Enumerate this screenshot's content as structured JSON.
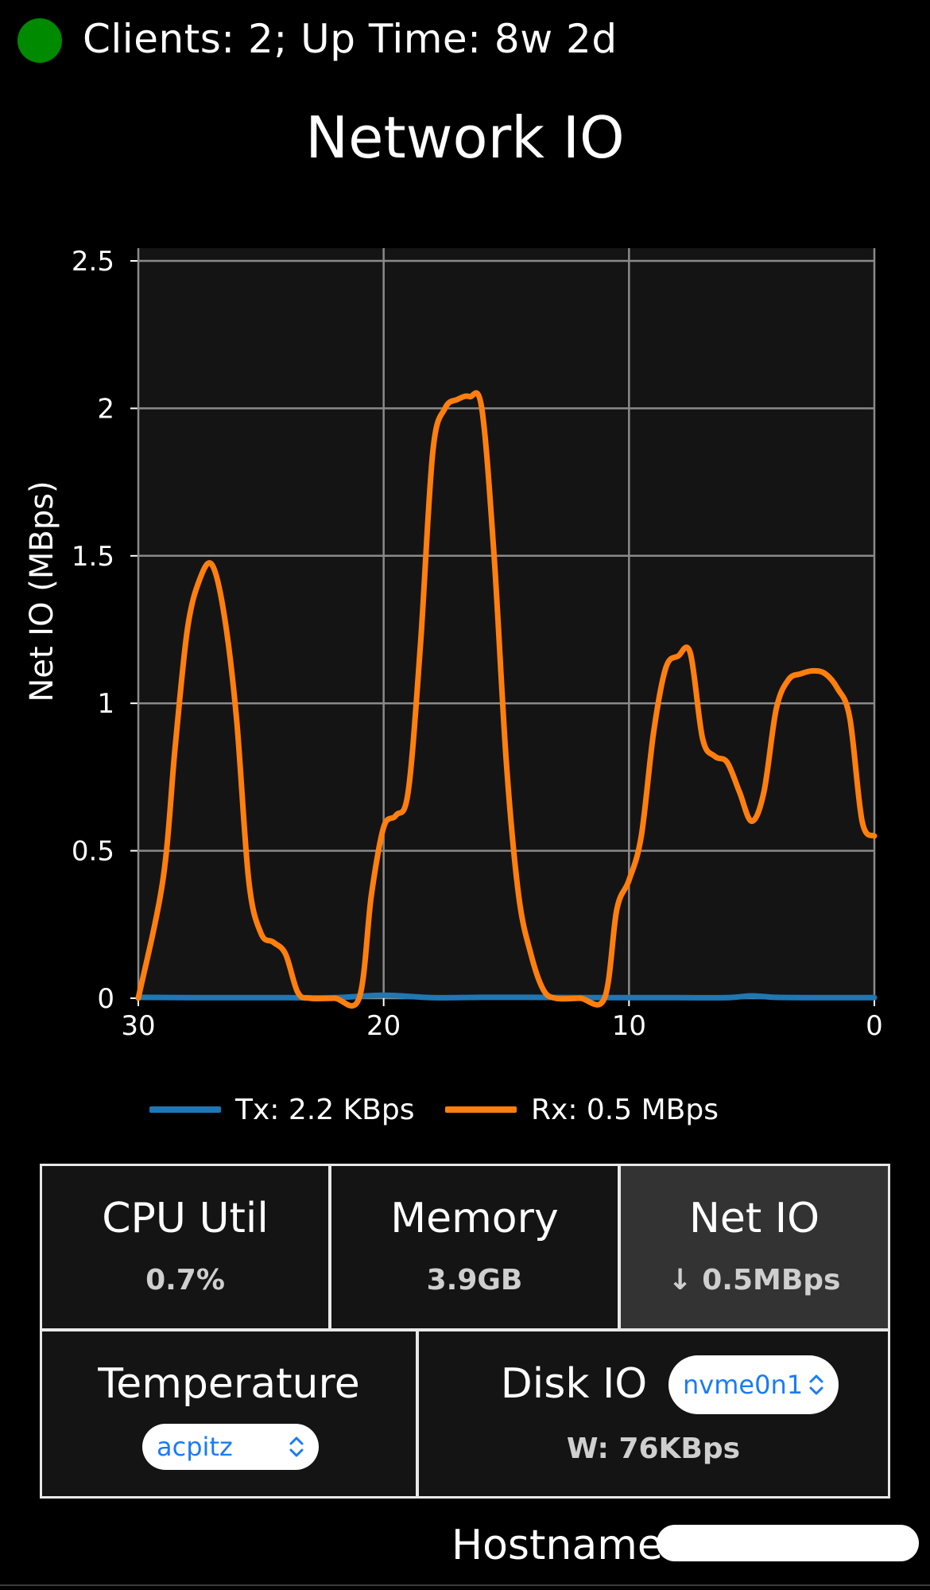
{
  "status": {
    "text": "Clients: 2; Up Time: 8w 2d",
    "indicator_color": "#008a00"
  },
  "page_title": "Network IO",
  "chart_data": {
    "type": "line",
    "title": "",
    "xlabel": "",
    "ylabel": "Net IO (MBps)",
    "xlim": [
      30,
      0
    ],
    "ylim": [
      0,
      2.5
    ],
    "x_ticks": [
      "30",
      "20",
      "10",
      "0"
    ],
    "y_ticks": [
      "0",
      "0.5",
      "1",
      "1.5",
      "2",
      "2.5"
    ],
    "grid": true,
    "legend_position": "bottom",
    "background": "#141414",
    "series": [
      {
        "name": "Tx: 2.2 KBps",
        "color": "#1f77b4",
        "x": [
          30,
          28,
          26,
          24,
          22,
          20,
          18,
          16,
          14,
          12,
          10,
          8,
          6,
          5,
          4,
          2,
          0
        ],
        "y": [
          0.003,
          0.002,
          0.002,
          0.002,
          0.002,
          0.01,
          0.002,
          0.003,
          0.003,
          0.002,
          0.002,
          0.002,
          0.002,
          0.008,
          0.003,
          0.002,
          0.002
        ]
      },
      {
        "name": "Rx: 0.5 MBps",
        "color": "#ff7f0e",
        "x": [
          30,
          29,
          28.5,
          28,
          27.5,
          27,
          26.5,
          26,
          25.5,
          25,
          24.5,
          24,
          23.5,
          23,
          22,
          21,
          20.5,
          20,
          19.5,
          19,
          18.5,
          18,
          17.5,
          17,
          16.5,
          16,
          15.5,
          15,
          14.5,
          14,
          13.5,
          13,
          12,
          11,
          10.5,
          10,
          9.5,
          9,
          8.5,
          8,
          7.5,
          7,
          6.5,
          6,
          5.5,
          5,
          4.5,
          4,
          3.5,
          3,
          2.5,
          2,
          1.5,
          1,
          0.5,
          0
        ],
        "y": [
          0.0,
          0.4,
          0.85,
          1.25,
          1.42,
          1.47,
          1.3,
          0.95,
          0.4,
          0.22,
          0.19,
          0.15,
          0.02,
          0.0,
          0.0,
          0.0,
          0.35,
          0.58,
          0.62,
          0.7,
          1.2,
          1.85,
          2.0,
          2.03,
          2.04,
          2.0,
          1.5,
          0.8,
          0.35,
          0.15,
          0.03,
          0.0,
          0.0,
          0.0,
          0.3,
          0.4,
          0.55,
          0.9,
          1.12,
          1.16,
          1.17,
          0.88,
          0.82,
          0.8,
          0.7,
          0.6,
          0.7,
          0.98,
          1.08,
          1.1,
          1.11,
          1.1,
          1.05,
          0.95,
          0.6,
          0.55
        ]
      }
    ]
  },
  "legend": [
    {
      "label": "Tx: 2.2 KBps",
      "color": "#1f77b4"
    },
    {
      "label": "Rx: 0.5 MBps",
      "color": "#ff7f0e"
    }
  ],
  "tiles": {
    "cpu": {
      "label": "CPU Util",
      "value": "0.7%"
    },
    "memory": {
      "label": "Memory",
      "value": "3.9GB"
    },
    "net": {
      "label": "Net IO",
      "value": "↓ 0.5MBps"
    },
    "temperature": {
      "label": "Temperature",
      "select_value": "acpitz"
    },
    "disk": {
      "label": "Disk IO",
      "select_value": "nvme0n1",
      "value": "W: 76KBps"
    }
  },
  "hostname": {
    "label": "Hostname:",
    "value": ""
  },
  "colors": {
    "select_text": "#1a7cf5",
    "tile_border": "#e8e8e8",
    "active_tile_bg": "#333333"
  }
}
